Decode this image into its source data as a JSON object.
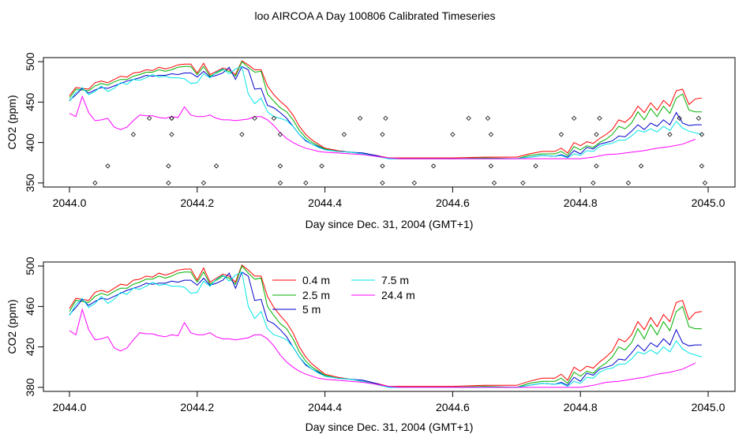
{
  "title": "loo AIRCOA A  Day 100806  Calibrated Timeseries",
  "colors": {
    "s04": "#ff0000",
    "s25": "#00b000",
    "s5": "#0000cc",
    "s75": "#00e5e5",
    "s244": "#ff00ff",
    "axis": "#000000"
  },
  "chart_data": [
    {
      "type": "line",
      "xlabel": "Day since Dec. 31, 2004 (GMT+1)",
      "ylabel": "CO2 (ppm)",
      "xlim": [
        2044.0,
        2045.0
      ],
      "ylim": [
        345,
        505
      ],
      "xticks": [
        "2044.0",
        "2044.2",
        "2044.4",
        "2044.6",
        "2044.8",
        "2045.0"
      ],
      "yticks": [
        "350",
        "400",
        "450",
        "500"
      ],
      "series": [
        {
          "key": "s04",
          "x": [
            2044.0,
            2044.01,
            2044.02,
            2044.03,
            2044.04,
            2044.05,
            2044.06,
            2044.07,
            2044.08,
            2044.09,
            2044.1,
            2044.11,
            2044.12,
            2044.13,
            2044.14,
            2044.15,
            2044.16,
            2044.17,
            2044.18,
            2044.19,
            2044.2,
            2044.21,
            2044.22,
            2044.23,
            2044.24,
            2044.25,
            2044.26,
            2044.27,
            2044.28,
            2044.29,
            2044.3,
            2044.31,
            2044.32,
            2044.33,
            2044.34,
            2044.35,
            2044.36,
            2044.37,
            2044.38,
            2044.39,
            2044.4,
            2044.42,
            2044.44,
            2044.46,
            2044.48,
            2044.5,
            2044.52,
            2044.55,
            2044.6,
            2044.65,
            2044.7,
            2044.72,
            2044.74,
            2044.76,
            2044.77,
            2044.78,
            2044.79,
            2044.8,
            2044.81,
            2044.82,
            2044.83,
            2044.84,
            2044.85,
            2044.86,
            2044.87,
            2044.88,
            2044.89,
            2044.9,
            2044.91,
            2044.92,
            2044.93,
            2044.94,
            2044.95,
            2044.96,
            2044.97,
            2044.98,
            2044.99
          ],
          "y": [
            458,
            468,
            467,
            466,
            474,
            476,
            474,
            478,
            482,
            481,
            486,
            487,
            490,
            489,
            493,
            491,
            493,
            496,
            497,
            497,
            486,
            498,
            484,
            488,
            492,
            490,
            484,
            501,
            496,
            490,
            490,
            470,
            459,
            451,
            444,
            434,
            420,
            410,
            403,
            398,
            393,
            390,
            388,
            386,
            384,
            381,
            381,
            381,
            381,
            382,
            382,
            386,
            389,
            389,
            393,
            387,
            400,
            396,
            401,
            399,
            405,
            410,
            416,
            428,
            425,
            432,
            445,
            437,
            449,
            440,
            452,
            445,
            464,
            466,
            447,
            454,
            455
          ]
        },
        {
          "key": "s25",
          "x": [
            2044.0,
            2044.01,
            2044.02,
            2044.03,
            2044.04,
            2044.05,
            2044.06,
            2044.07,
            2044.08,
            2044.09,
            2044.1,
            2044.11,
            2044.12,
            2044.13,
            2044.14,
            2044.15,
            2044.16,
            2044.17,
            2044.18,
            2044.19,
            2044.2,
            2044.21,
            2044.22,
            2044.23,
            2044.24,
            2044.25,
            2044.26,
            2044.27,
            2044.28,
            2044.29,
            2044.3,
            2044.31,
            2044.32,
            2044.33,
            2044.34,
            2044.35,
            2044.36,
            2044.37,
            2044.38,
            2044.39,
            2044.4,
            2044.42,
            2044.44,
            2044.46,
            2044.48,
            2044.5,
            2044.52,
            2044.55,
            2044.6,
            2044.65,
            2044.7,
            2044.72,
            2044.74,
            2044.76,
            2044.77,
            2044.78,
            2044.79,
            2044.8,
            2044.81,
            2044.82,
            2044.83,
            2044.84,
            2044.85,
            2044.86,
            2044.87,
            2044.88,
            2044.89,
            2044.9,
            2044.91,
            2044.92,
            2044.93,
            2044.94,
            2044.95,
            2044.96,
            2044.97,
            2044.98,
            2044.99
          ],
          "y": [
            455,
            466,
            465,
            464,
            470,
            473,
            471,
            475,
            478,
            478,
            482,
            484,
            487,
            487,
            490,
            488,
            490,
            493,
            494,
            494,
            484,
            494,
            482,
            486,
            490,
            488,
            482,
            500,
            493,
            487,
            488,
            460,
            451,
            443,
            438,
            428,
            415,
            406,
            400,
            396,
            392,
            389,
            388,
            386,
            383,
            380,
            380,
            380,
            380,
            381,
            380,
            384,
            386,
            386,
            389,
            384,
            395,
            391,
            396,
            394,
            400,
            404,
            410,
            420,
            417,
            424,
            438,
            428,
            442,
            432,
            445,
            436,
            455,
            460,
            440,
            438,
            438
          ]
        },
        {
          "key": "s5",
          "x": [
            2044.0,
            2044.01,
            2044.02,
            2044.03,
            2044.04,
            2044.05,
            2044.06,
            2044.07,
            2044.08,
            2044.09,
            2044.1,
            2044.11,
            2044.12,
            2044.13,
            2044.14,
            2044.15,
            2044.16,
            2044.17,
            2044.18,
            2044.19,
            2044.2,
            2044.21,
            2044.22,
            2044.23,
            2044.24,
            2044.25,
            2044.26,
            2044.27,
            2044.28,
            2044.29,
            2044.3,
            2044.31,
            2044.32,
            2044.33,
            2044.34,
            2044.35,
            2044.36,
            2044.37,
            2044.38,
            2044.39,
            2044.4,
            2044.42,
            2044.44,
            2044.46,
            2044.48,
            2044.5,
            2044.52,
            2044.55,
            2044.6,
            2044.65,
            2044.7,
            2044.72,
            2044.74,
            2044.76,
            2044.77,
            2044.78,
            2044.79,
            2044.8,
            2044.81,
            2044.82,
            2044.83,
            2044.84,
            2044.85,
            2044.86,
            2044.87,
            2044.88,
            2044.89,
            2044.9,
            2044.91,
            2044.92,
            2044.93,
            2044.94,
            2044.95,
            2044.96,
            2044.97,
            2044.98,
            2044.99
          ],
          "y": [
            452,
            459,
            467,
            461,
            465,
            468,
            467,
            470,
            473,
            476,
            478,
            480,
            483,
            482,
            483,
            483,
            485,
            484,
            486,
            486,
            481,
            488,
            481,
            483,
            486,
            493,
            478,
            494,
            490,
            466,
            467,
            446,
            443,
            437,
            430,
            420,
            410,
            402,
            398,
            395,
            391,
            389,
            388,
            387,
            384,
            380,
            380,
            380,
            380,
            380,
            380,
            382,
            384,
            383,
            385,
            382,
            390,
            386,
            394,
            392,
            398,
            400,
            402,
            408,
            407,
            414,
            422,
            416,
            424,
            420,
            428,
            422,
            437,
            424,
            421,
            422,
            422
          ]
        },
        {
          "key": "s75",
          "x": [
            2044.0,
            2044.01,
            2044.02,
            2044.03,
            2044.04,
            2044.05,
            2044.06,
            2044.07,
            2044.08,
            2044.09,
            2044.1,
            2044.11,
            2044.12,
            2044.13,
            2044.14,
            2044.15,
            2044.16,
            2044.17,
            2044.18,
            2044.19,
            2044.2,
            2044.21,
            2044.22,
            2044.23,
            2044.24,
            2044.25,
            2044.26,
            2044.27,
            2044.28,
            2044.29,
            2044.3,
            2044.31,
            2044.32,
            2044.33,
            2044.34,
            2044.35,
            2044.36,
            2044.37,
            2044.38,
            2044.39,
            2044.4,
            2044.42,
            2044.44,
            2044.46,
            2044.48,
            2044.5,
            2044.52,
            2044.55,
            2044.6,
            2044.65,
            2044.7,
            2044.72,
            2044.74,
            2044.76,
            2044.77,
            2044.78,
            2044.79,
            2044.8,
            2044.81,
            2044.82,
            2044.83,
            2044.84,
            2044.85,
            2044.86,
            2044.87,
            2044.88,
            2044.89,
            2044.9,
            2044.91,
            2044.92,
            2044.93,
            2044.94,
            2044.95,
            2044.96,
            2044.97,
            2044.98,
            2044.99
          ],
          "y": [
            451,
            462,
            468,
            459,
            463,
            470,
            463,
            467,
            474,
            472,
            478,
            477,
            480,
            484,
            481,
            482,
            480,
            480,
            479,
            473,
            474,
            485,
            480,
            487,
            491,
            485,
            491,
            494,
            460,
            448,
            455,
            438,
            432,
            430,
            427,
            420,
            410,
            403,
            398,
            394,
            391,
            389,
            388,
            386,
            383,
            380,
            380,
            380,
            380,
            380,
            380,
            382,
            384,
            383,
            384,
            381,
            386,
            384,
            390,
            389,
            395,
            398,
            399,
            403,
            403,
            408,
            415,
            413,
            417,
            413,
            420,
            415,
            426,
            418,
            414,
            412,
            410
          ]
        },
        {
          "key": "s244",
          "x": [
            2044.0,
            2044.01,
            2044.02,
            2044.03,
            2044.04,
            2044.05,
            2044.06,
            2044.07,
            2044.08,
            2044.09,
            2044.1,
            2044.11,
            2044.12,
            2044.13,
            2044.14,
            2044.15,
            2044.16,
            2044.17,
            2044.18,
            2044.19,
            2044.2,
            2044.21,
            2044.22,
            2044.23,
            2044.24,
            2044.25,
            2044.26,
            2044.27,
            2044.28,
            2044.29,
            2044.3,
            2044.31,
            2044.32,
            2044.33,
            2044.34,
            2044.35,
            2044.36,
            2044.37,
            2044.38,
            2044.39,
            2044.4,
            2044.42,
            2044.44,
            2044.46,
            2044.48,
            2044.5,
            2044.52,
            2044.55,
            2044.6,
            2044.65,
            2044.7,
            2044.72,
            2044.74,
            2044.76,
            2044.78,
            2044.8,
            2044.82,
            2044.84,
            2044.86,
            2044.88,
            2044.9,
            2044.92,
            2044.94,
            2044.96,
            2044.98
          ],
          "y": [
            436,
            432,
            457,
            437,
            427,
            428,
            430,
            419,
            416,
            419,
            427,
            434,
            433,
            433,
            431,
            430,
            432,
            431,
            444,
            434,
            432,
            432,
            434,
            430,
            428,
            428,
            427,
            428,
            429,
            432,
            432,
            428,
            421,
            412,
            405,
            400,
            396,
            393,
            391,
            389,
            388,
            387,
            386,
            385,
            383,
            381,
            380,
            380,
            380,
            380,
            380,
            380,
            380,
            380,
            380,
            380,
            382,
            385,
            386,
            388,
            390,
            393,
            395,
            398,
            404
          ]
        }
      ],
      "scatter": {
        "x": [
          2044.04,
          2044.06,
          2044.1,
          2044.125,
          2044.155,
          2044.155,
          2044.16,
          2044.16,
          2044.16,
          2044.21,
          2044.23,
          2044.27,
          2044.29,
          2044.32,
          2044.33,
          2044.33,
          2044.33,
          2044.37,
          2044.395,
          2044.43,
          2044.455,
          2044.49,
          2044.49,
          2044.49,
          2044.495,
          2044.54,
          2044.57,
          2044.6,
          2044.625,
          2044.655,
          2044.66,
          2044.66,
          2044.665,
          2044.71,
          2044.73,
          2044.77,
          2044.79,
          2044.82,
          2044.825,
          2044.825,
          2044.83,
          2044.875,
          2044.895,
          2044.94,
          2044.955,
          2044.985,
          2044.99,
          2044.99,
          2044.995
        ],
        "y": [
          350,
          371,
          410,
          430,
          350,
          371,
          410,
          430,
          430,
          350,
          371,
          410,
          430,
          430,
          410,
          371,
          350,
          350,
          371,
          410,
          430,
          350,
          371,
          410,
          430,
          350,
          371,
          410,
          430,
          430,
          371,
          410,
          350,
          350,
          371,
          410,
          430,
          350,
          371,
          410,
          430,
          350,
          371,
          410,
          430,
          430,
          371,
          410,
          350
        ]
      }
    },
    {
      "type": "line",
      "xlabel": "Day since Dec. 31, 2004 (GMT+1)",
      "ylabel": "CO2 (ppm)",
      "xlim": [
        2044.0,
        2045.0
      ],
      "ylim": [
        376,
        504
      ],
      "xticks": [
        "2044.0",
        "2044.2",
        "2044.4",
        "2044.6",
        "2044.8",
        "2045.0"
      ],
      "yticks": [
        "380",
        "420",
        "460",
        "500"
      ],
      "legend": [
        {
          "key": "s04",
          "label": "0.4 m"
        },
        {
          "key": "s25",
          "label": "2.5 m"
        },
        {
          "key": "s5",
          "label": "5 m"
        },
        {
          "key": "s75",
          "label": "7.5 m"
        },
        {
          "key": "s244",
          "label": "24.4 m"
        }
      ],
      "legend_position": "top-center"
    }
  ]
}
